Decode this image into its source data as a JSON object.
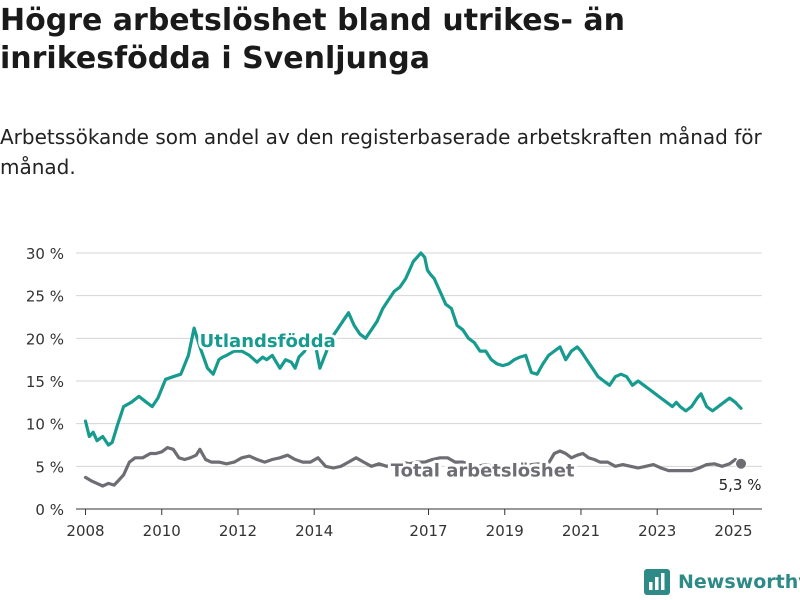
{
  "title": "Högre arbetslöshet bland utrikes- än inrikesfödda i Svenljunga",
  "subtitle": "Arbetssökande som andel av den registerbaserade arbetskraften månad för månad.",
  "brand": {
    "name": "Newsworthy",
    "icon": "bar-chart-icon"
  },
  "chart_data": {
    "type": "line",
    "ylim": [
      0,
      30
    ],
    "xlim": [
      2007.75,
      2025.75
    ],
    "y_ticks": [
      0,
      5,
      10,
      15,
      20,
      25,
      30
    ],
    "y_tick_labels": [
      "0 %",
      "5 %",
      "10 %",
      "15 %",
      "20 %",
      "25 %",
      "30 %"
    ],
    "x_ticks": [
      2008,
      2010,
      2012,
      2014,
      2017,
      2019,
      2021,
      2023,
      2025
    ],
    "x_tick_labels": [
      "2008",
      "2010",
      "2012",
      "2014",
      "2017",
      "2019",
      "2021",
      "2023",
      "2025"
    ],
    "grid": "horizontal",
    "end_label": "5,3 %",
    "series": [
      {
        "name": "Utlandsfödda",
        "color": "#179b8f",
        "x": [
          2008.0,
          2008.1,
          2008.2,
          2008.3,
          2008.45,
          2008.6,
          2008.7,
          2008.85,
          2009.0,
          2009.2,
          2009.4,
          2009.6,
          2009.75,
          2009.9,
          2010.1,
          2010.3,
          2010.5,
          2010.7,
          2010.85,
          2011.0,
          2011.2,
          2011.35,
          2011.5,
          2011.6,
          2011.7,
          2011.9,
          2012.1,
          2012.3,
          2012.5,
          2012.65,
          2012.75,
          2012.9,
          2013.1,
          2013.25,
          2013.4,
          2013.5,
          2013.6,
          2013.75,
          2013.85,
          2014.0,
          2014.15,
          2014.3,
          2014.45,
          2014.6,
          2014.75,
          2014.9,
          2015.05,
          2015.2,
          2015.35,
          2015.5,
          2015.65,
          2015.8,
          2015.95,
          2016.1,
          2016.25,
          2016.4,
          2016.5,
          2016.6,
          2016.7,
          2016.8,
          2016.9,
          2016.97,
          2017.05,
          2017.15,
          2017.3,
          2017.45,
          2017.6,
          2017.75,
          2017.9,
          2018.05,
          2018.2,
          2018.35,
          2018.5,
          2018.65,
          2018.8,
          2018.95,
          2019.1,
          2019.25,
          2019.4,
          2019.55,
          2019.7,
          2019.85,
          2020.0,
          2020.15,
          2020.3,
          2020.45,
          2020.6,
          2020.75,
          2020.9,
          2021.0,
          2021.15,
          2021.3,
          2021.45,
          2021.6,
          2021.75,
          2021.9,
          2022.05,
          2022.2,
          2022.35,
          2022.5,
          2022.65,
          2022.8,
          2022.95,
          2023.1,
          2023.25,
          2023.4,
          2023.5,
          2023.6,
          2023.75,
          2023.9,
          2024.05,
          2024.15,
          2024.3,
          2024.45,
          2024.6,
          2024.75,
          2024.9,
          2025.05,
          2025.2
        ],
        "values": [
          10.3,
          8.5,
          9.0,
          8.0,
          8.5,
          7.5,
          7.8,
          10.0,
          12.0,
          12.5,
          13.2,
          12.5,
          12.0,
          13.0,
          15.2,
          15.5,
          15.8,
          18.0,
          21.2,
          19.0,
          16.5,
          15.8,
          17.5,
          17.8,
          18.0,
          18.5,
          18.5,
          18.0,
          17.2,
          17.8,
          17.5,
          18.0,
          16.5,
          17.5,
          17.2,
          16.5,
          17.8,
          18.5,
          20.5,
          20.0,
          16.5,
          18.2,
          20.0,
          21.0,
          22.0,
          23.0,
          21.5,
          20.5,
          20.0,
          21.0,
          22.0,
          23.5,
          24.5,
          25.5,
          26.0,
          27.0,
          28.0,
          29.0,
          29.5,
          30.0,
          29.5,
          28.0,
          27.5,
          27.0,
          25.5,
          24.0,
          23.5,
          21.5,
          21.0,
          20.0,
          19.5,
          18.5,
          18.5,
          17.5,
          17.0,
          16.8,
          17.0,
          17.5,
          17.8,
          18.0,
          16.0,
          15.8,
          17.0,
          18.0,
          18.5,
          19.0,
          17.5,
          18.5,
          19.0,
          18.5,
          17.5,
          16.5,
          15.5,
          15.0,
          14.5,
          15.5,
          15.8,
          15.5,
          14.5,
          15.0,
          14.5,
          14.0,
          13.5,
          13.0,
          12.5,
          12.0,
          12.5,
          12.0,
          11.5,
          12.0,
          13.0,
          13.5,
          12.0,
          11.5,
          12.0,
          12.5,
          13.0,
          12.5,
          11.8
        ]
      },
      {
        "name": "Total arbetslöshet",
        "color": "#6e6d73",
        "x": [
          2008.0,
          2008.15,
          2008.3,
          2008.45,
          2008.6,
          2008.75,
          2008.9,
          2009.0,
          2009.15,
          2009.3,
          2009.5,
          2009.7,
          2009.85,
          2010.0,
          2010.15,
          2010.3,
          2010.45,
          2010.6,
          2010.75,
          2010.9,
          2011.0,
          2011.15,
          2011.3,
          2011.5,
          2011.7,
          2011.9,
          2012.1,
          2012.3,
          2012.5,
          2012.7,
          2012.9,
          2013.1,
          2013.3,
          2013.5,
          2013.7,
          2013.9,
          2014.1,
          2014.3,
          2014.5,
          2014.7,
          2014.9,
          2015.1,
          2015.3,
          2015.5,
          2015.7,
          2015.9,
          2016.1,
          2016.3,
          2016.5,
          2016.7,
          2016.9,
          2017.1,
          2017.3,
          2017.5,
          2017.7,
          2017.9,
          2018.1,
          2018.3,
          2018.5,
          2018.7,
          2018.9,
          2019.1,
          2019.3,
          2019.5,
          2019.7,
          2019.9,
          2020.1,
          2020.3,
          2020.45,
          2020.6,
          2020.75,
          2020.9,
          2021.05,
          2021.2,
          2021.35,
          2021.5,
          2021.7,
          2021.9,
          2022.1,
          2022.3,
          2022.5,
          2022.7,
          2022.9,
          2023.1,
          2023.3,
          2023.5,
          2023.7,
          2023.9,
          2024.1,
          2024.3,
          2024.5,
          2024.7,
          2024.9,
          2025.05,
          2025.2
        ],
        "values": [
          3.7,
          3.3,
          3.0,
          2.7,
          3.0,
          2.8,
          3.5,
          4.0,
          5.5,
          6.0,
          6.0,
          6.5,
          6.5,
          6.7,
          7.2,
          7.0,
          6.0,
          5.8,
          6.0,
          6.3,
          7.0,
          5.8,
          5.5,
          5.5,
          5.3,
          5.5,
          6.0,
          6.2,
          5.8,
          5.5,
          5.8,
          6.0,
          6.3,
          5.8,
          5.5,
          5.5,
          6.0,
          5.0,
          4.8,
          5.0,
          5.5,
          6.0,
          5.5,
          5.0,
          5.3,
          5.0,
          5.3,
          5.5,
          5.3,
          5.5,
          5.5,
          5.8,
          6.0,
          6.0,
          5.5,
          5.5,
          5.2,
          5.0,
          5.2,
          5.0,
          4.8,
          5.0,
          5.3,
          5.0,
          5.2,
          5.3,
          5.0,
          6.5,
          6.8,
          6.5,
          6.0,
          6.3,
          6.5,
          6.0,
          5.8,
          5.5,
          5.5,
          5.0,
          5.2,
          5.0,
          4.8,
          5.0,
          5.2,
          4.8,
          4.5,
          4.5,
          4.5,
          4.5,
          4.8,
          5.2,
          5.3,
          5.0,
          5.3,
          5.8,
          5.3
        ]
      }
    ]
  }
}
